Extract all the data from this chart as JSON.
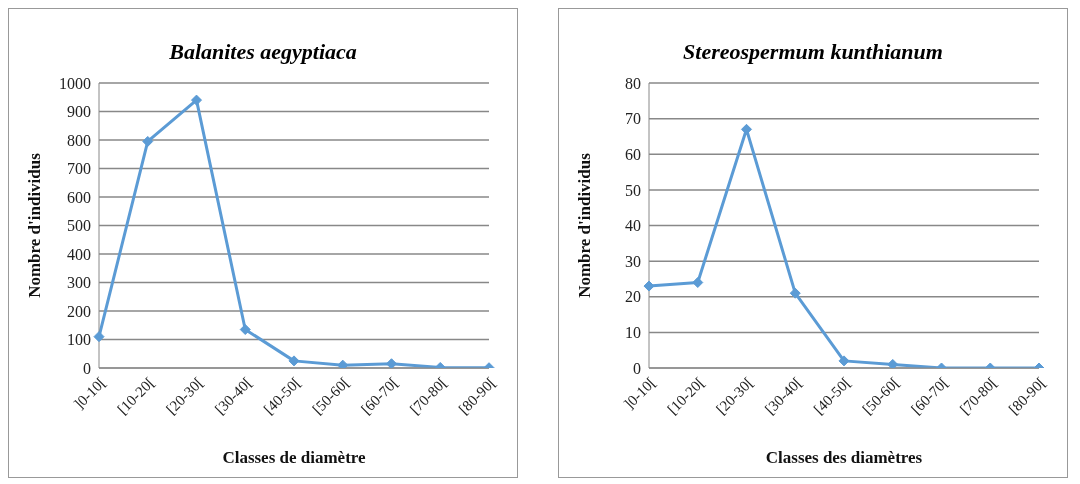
{
  "chart_data": [
    {
      "type": "line",
      "title": "Balanites aegyptiaca",
      "xlabel": "Classes de diamètre",
      "ylabel": "Nombre d'individus",
      "categories": [
        "]0-10[",
        "[10-20[",
        "[20-30[",
        "[30-40[",
        "[40-50[",
        "[50-60[",
        "[60-70[",
        "[70-80[",
        "[80-90["
      ],
      "series": [
        {
          "color": "#5b9bd5",
          "values": [
            110,
            795,
            940,
            135,
            25,
            10,
            15,
            2,
            1
          ]
        }
      ],
      "ylim": [
        0,
        1000
      ],
      "yticks": [
        0,
        100,
        200,
        300,
        400,
        500,
        600,
        700,
        800,
        900,
        1000
      ],
      "grid": "y",
      "marker": "diamond",
      "line_style": "solid",
      "legend": false
    },
    {
      "type": "line",
      "title": "Stereospermum kunthianum",
      "xlabel": "Classes des diamètres",
      "ylabel": "Nombre d'individus",
      "categories": [
        "]0-10[",
        "[10-20[",
        "[20-30[",
        "[30-40[",
        "[40-50[",
        "[50-60[",
        "[60-70[",
        "[70-80[",
        "[80-90["
      ],
      "series": [
        {
          "color": "#5b9bd5",
          "values": [
            23,
            24,
            67,
            21,
            2,
            1,
            0,
            0,
            0
          ]
        }
      ],
      "ylim": [
        0,
        80
      ],
      "yticks": [
        0,
        10,
        20,
        30,
        40,
        50,
        60,
        70,
        80
      ],
      "grid": "y",
      "marker": "diamond",
      "line_style": "solid",
      "legend": false
    }
  ]
}
